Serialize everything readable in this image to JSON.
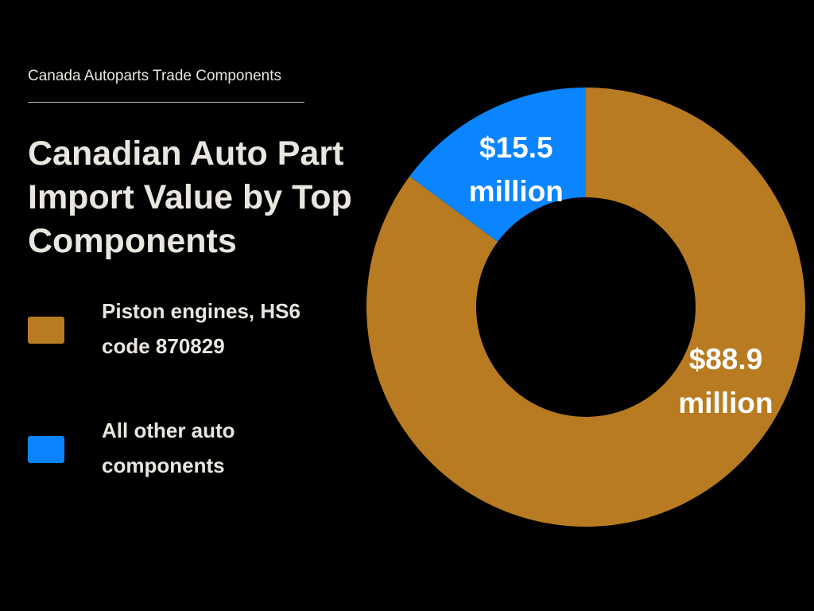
{
  "header": {
    "kicker": "Canada Autoparts Trade Components",
    "title": "Canadian Auto Part Import Value by Top Components"
  },
  "chart_data": {
    "type": "pie",
    "donut": true,
    "title": "Canadian Auto Part Import Value by Top Components",
    "unit": "million",
    "legend_position": "left",
    "slices": [
      {
        "name": "Piston engines, HS6 code 870829",
        "value": 88.9,
        "label_line1": "$88.9",
        "label_line2": "million",
        "color": "#b87b21"
      },
      {
        "name": "All other auto components",
        "value": 15.5,
        "label_line1": "$15.5",
        "label_line2": "million",
        "color": "#0a84ff"
      }
    ]
  },
  "colors": {
    "background": "#000000",
    "text": "#e8e6df",
    "rule": "#bdbdbd"
  }
}
